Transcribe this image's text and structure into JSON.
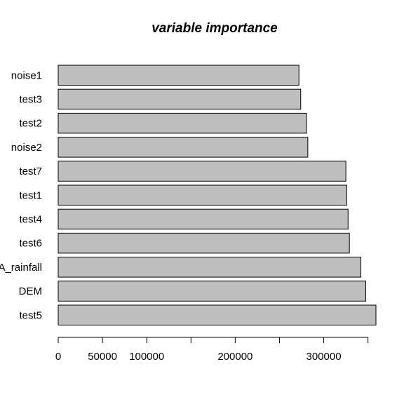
{
  "chart_data": {
    "type": "bar",
    "orientation": "horizontal",
    "title": "variable importance",
    "categories": [
      "noise1",
      "test3",
      "test2",
      "noise2",
      "test7",
      "test1",
      "test4",
      "test6",
      "A_rainfall",
      "DEM",
      "test5"
    ],
    "values": [
      272000,
      274000,
      280500,
      282000,
      325000,
      326000,
      327500,
      329000,
      342000,
      347500,
      359000
    ],
    "x_ticks": [
      0,
      50000,
      100000,
      150000,
      200000,
      250000,
      300000,
      350000
    ],
    "x_tick_labels": [
      "0",
      "50000",
      "100000",
      "",
      "200000",
      "",
      "300000",
      ""
    ],
    "xlim": [
      0,
      359000
    ],
    "xlabel": "",
    "ylabel": "",
    "grid": false,
    "bar_color": "#bebebe",
    "bar_border_color": "#000000"
  }
}
